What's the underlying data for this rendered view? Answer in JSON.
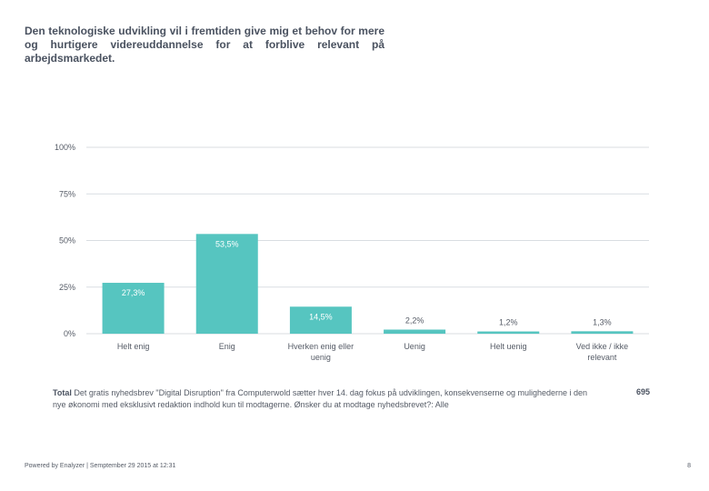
{
  "title": "Den teknologiske udvikling vil i fremtiden give mig et behov for mere og hurtigere videreuddannelse for at forblive relevant på arbejdsmarkedet.",
  "chart_data": {
    "type": "bar",
    "categories": [
      "Helt enig",
      "Enig",
      "Hverken enig eller uenig",
      "Uenig",
      "Helt uenig",
      "Ved ikke / ikke relevant"
    ],
    "category_lines": [
      [
        "Helt enig"
      ],
      [
        "Enig"
      ],
      [
        "Hverken enig eller",
        "uenig"
      ],
      [
        "Uenig"
      ],
      [
        "Helt uenig"
      ],
      [
        "Ved ikke / ikke",
        "relevant"
      ]
    ],
    "values": [
      27.3,
      53.5,
      14.5,
      2.2,
      1.2,
      1.3
    ],
    "value_labels": [
      "27,3%",
      "53,5%",
      "14,5%",
      "2,2%",
      "1,2%",
      "1,3%"
    ],
    "ylim": [
      0,
      100
    ],
    "yticks": [
      0,
      25,
      50,
      75,
      100
    ],
    "ytick_labels": [
      "0%",
      "25%",
      "50%",
      "75%",
      "100%"
    ],
    "bar_color": "#56c5c0",
    "grid_color": "#d9dde2",
    "xlabel": "",
    "ylabel": ""
  },
  "total": {
    "label": "Total",
    "description": "Det gratis nyhedsbrev \"Digital Disruption\" fra Computerwold sætter hver 14. dag fokus på udviklingen, konsekvenserne og mulighederne i den nye økonomi med eksklusivt redaktion indhold kun til modtagerne. Ønsker du at modtage nyhedsbrevet?: Alle",
    "count": "695"
  },
  "footer": "Powered by Enalyzer | Semptember 29 2015 at 12:31",
  "page_number": "8"
}
